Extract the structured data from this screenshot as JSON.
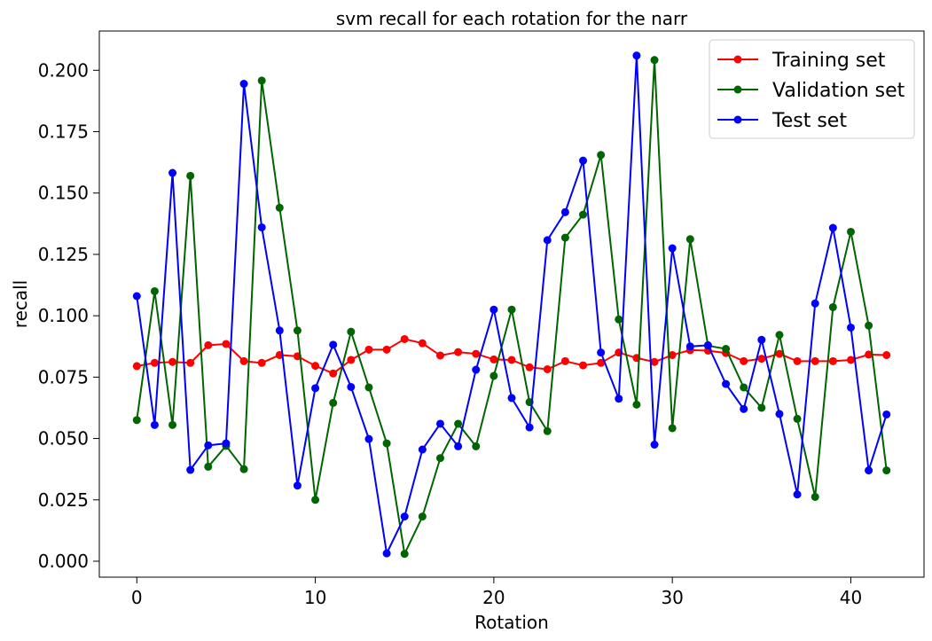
{
  "chart_data": {
    "type": "line",
    "title": "svm recall for each rotation for the narr",
    "xlabel": "Rotation",
    "ylabel": "recall",
    "xlim": [
      -2.1,
      44.1
    ],
    "ylim": [
      -0.0065,
      0.216
    ],
    "xticks": [
      0,
      10,
      20,
      30,
      40
    ],
    "yticks": [
      0.0,
      0.025,
      0.05,
      0.075,
      0.1,
      0.125,
      0.15,
      0.175,
      0.2
    ],
    "ytick_labels": [
      "0.000",
      "0.025",
      "0.050",
      "0.075",
      "0.100",
      "0.125",
      "0.150",
      "0.175",
      "0.200"
    ],
    "xtick_labels": [
      "0",
      "10",
      "20",
      "30",
      "40"
    ],
    "legend_position": "top-right",
    "grid": false,
    "x": [
      0,
      1,
      2,
      3,
      4,
      5,
      6,
      7,
      8,
      9,
      10,
      11,
      12,
      13,
      14,
      15,
      16,
      17,
      18,
      19,
      20,
      21,
      22,
      23,
      24,
      25,
      26,
      27,
      28,
      29,
      30,
      31,
      32,
      33,
      34,
      35,
      36,
      37,
      38,
      39,
      40,
      41,
      42
    ],
    "series": [
      {
        "name": "Training set",
        "color": "#ff0000",
        "values": [
          0.0795,
          0.0808,
          0.0812,
          0.0808,
          0.088,
          0.0885,
          0.0815,
          0.0808,
          0.084,
          0.0835,
          0.0796,
          0.0765,
          0.082,
          0.0862,
          0.0862,
          0.0905,
          0.0888,
          0.0838,
          0.0852,
          0.0845,
          0.0822,
          0.082,
          0.079,
          0.0782,
          0.0815,
          0.0798,
          0.0808,
          0.085,
          0.0828,
          0.0812,
          0.084,
          0.086,
          0.0858,
          0.0848,
          0.0815,
          0.0825,
          0.0845,
          0.0815,
          0.0815,
          0.0815,
          0.082,
          0.0842,
          0.084
        ]
      },
      {
        "name": "Validation set",
        "color": "#006400",
        "values": [
          0.0575,
          0.11,
          0.0555,
          0.157,
          0.0385,
          0.047,
          0.0375,
          0.1958,
          0.144,
          0.094,
          0.025,
          0.0645,
          0.0935,
          0.0708,
          0.048,
          0.003,
          0.0182,
          0.042,
          0.056,
          0.0468,
          0.0755,
          0.1025,
          0.0648,
          0.053,
          0.1318,
          0.1412,
          0.1655,
          0.0985,
          0.0638,
          0.2042,
          0.0542,
          0.1312,
          0.0878,
          0.0865,
          0.0708,
          0.0625,
          0.0922,
          0.058,
          0.0262,
          0.1035,
          0.1342,
          0.096,
          0.037
        ]
      },
      {
        "name": "Test set",
        "color": "#0000ff",
        "values": [
          0.108,
          0.0555,
          0.1582,
          0.0372,
          0.0472,
          0.048,
          0.1945,
          0.136,
          0.094,
          0.0308,
          0.0705,
          0.0882,
          0.071,
          0.0498,
          0.0032,
          0.0182,
          0.0455,
          0.056,
          0.0468,
          0.078,
          0.1025,
          0.0665,
          0.0545,
          0.1308,
          0.1422,
          0.1632,
          0.085,
          0.0662,
          0.206,
          0.0475,
          0.1275,
          0.0875,
          0.088,
          0.0722,
          0.062,
          0.0902,
          0.06,
          0.0272,
          0.105,
          0.1358,
          0.0952,
          0.037,
          0.0598
        ]
      }
    ]
  }
}
